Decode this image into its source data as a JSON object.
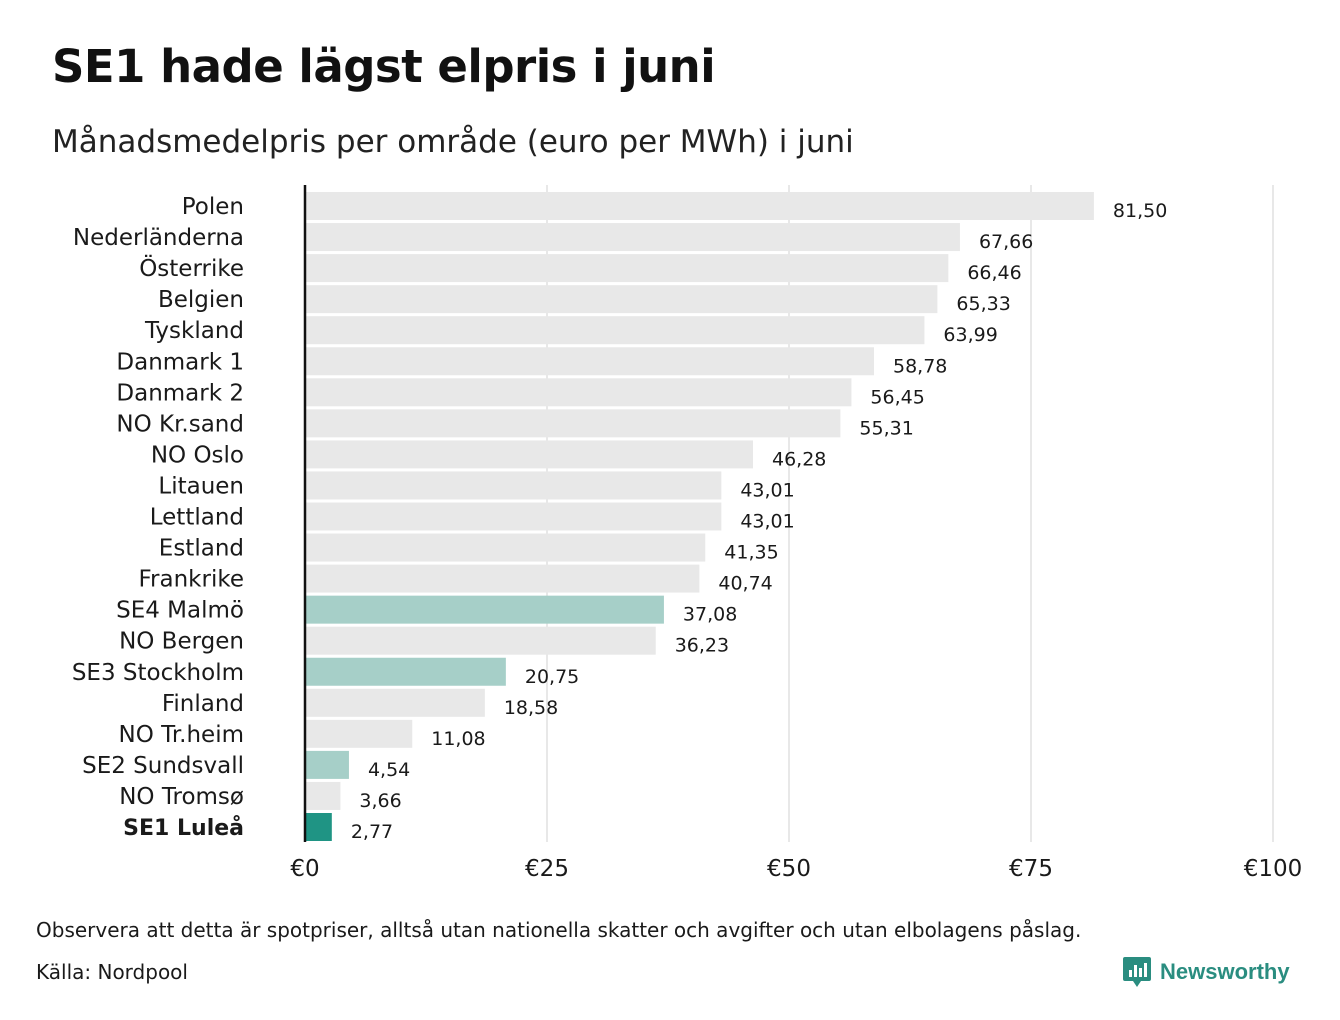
{
  "title": "SE1 hade lägst elpris i juni",
  "subtitle": "Månadsmedelpris per område (euro per MWh) i juni",
  "note": "Observera att detta är spotpriser, alltså utan nationella skatter och avgifter och utan elbolagens påslag.",
  "source": "Källa: Nordpool",
  "brand": {
    "name": "Newsworthy",
    "icon": "newsworthy-logo-icon",
    "color": "#2a8d80"
  },
  "colors": {
    "default": "#e8e8e8",
    "swedish": "#a6cfc8",
    "highlight": "#1f9484",
    "grid": "#d0d0d0",
    "axis": "#111111"
  },
  "chart_data": {
    "type": "bar",
    "orientation": "horizontal",
    "title": "SE1 hade lägst elpris i juni",
    "subtitle": "Månadsmedelpris per område (euro per MWh) i juni",
    "xlim": [
      0,
      100
    ],
    "x_ticks": [
      0,
      25,
      50,
      75,
      100
    ],
    "x_tick_labels": [
      "€0",
      "€25",
      "€50",
      "€75",
      "€100"
    ],
    "grid": true,
    "categories": [
      "Polen",
      "Nederländerna",
      "Österrike",
      "Belgien",
      "Tyskland",
      "Danmark  1",
      "Danmark  2",
      "NO Kr.sand",
      "NO Oslo",
      "Litauen",
      "Lettland",
      "Estland",
      "Frankrike",
      "SE4  Malmö",
      "NO Bergen",
      "SE3  Stockholm",
      "Finland",
      "NO Tr.heim",
      "SE2  Sundsvall",
      "NO Tromsø",
      "SE1 Luleå"
    ],
    "values": [
      81.5,
      67.66,
      66.46,
      65.33,
      63.99,
      58.78,
      56.45,
      55.31,
      46.28,
      43.01,
      43.01,
      41.35,
      40.74,
      37.08,
      36.23,
      20.75,
      18.58,
      11.08,
      4.54,
      3.66,
      2.77
    ],
    "value_labels": [
      "81,50",
      "67,66",
      "66,46",
      "65,33",
      "63,99",
      "58,78",
      "56,45",
      "55,31",
      "46,28",
      "43,01",
      "43,01",
      "41,35",
      "40,74",
      "37,08",
      "36,23",
      "20,75",
      "18,58",
      "11,08",
      "4,54",
      "3,66",
      "2,77"
    ],
    "bar_color_group": [
      "default",
      "default",
      "default",
      "default",
      "default",
      "default",
      "default",
      "default",
      "default",
      "default",
      "default",
      "default",
      "default",
      "swedish",
      "default",
      "swedish",
      "default",
      "default",
      "swedish",
      "default",
      "highlight"
    ],
    "bold_category": "SE1 Luleå"
  }
}
